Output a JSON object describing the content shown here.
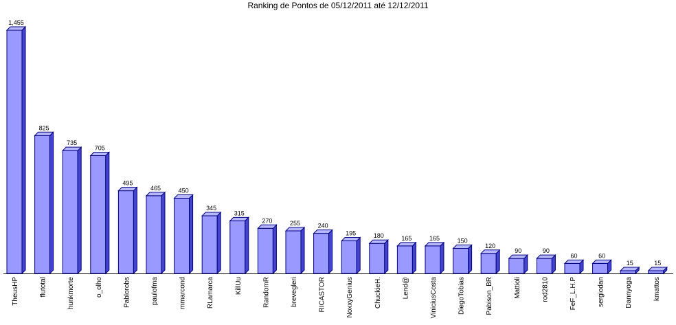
{
  "chart_data": {
    "type": "bar",
    "title": "Ranking de Pontos de 05/12/2011 até 12/12/2011",
    "xlabel": "",
    "ylabel": "",
    "categories": [
      "TheusHP",
      "flutotal",
      "hunkmorte",
      "o_olho",
      "Pablorobs",
      "paulofma",
      "mmarcond",
      "RLamarca",
      "KillUu",
      "RandomR",
      "brevegleri",
      "RICASTOR",
      "NoxxyGenius",
      "ChuckieH.",
      "Lend@",
      "ViniciusCosta",
      "DiegoTobias",
      "Pabison_BR",
      "Mattioli",
      "rod2810",
      "FeF_L.H.P",
      "sergiodan",
      "Dannyoga",
      "kmattos"
    ],
    "values": [
      1455,
      825,
      735,
      705,
      495,
      465,
      450,
      345,
      315,
      270,
      255,
      240,
      195,
      180,
      165,
      165,
      150,
      120,
      90,
      90,
      60,
      60,
      15,
      15
    ],
    "value_labels": [
      "1,455",
      "825",
      "735",
      "705",
      "495",
      "465",
      "450",
      "345",
      "315",
      "270",
      "255",
      "240",
      "195",
      "180",
      "165",
      "165",
      "150",
      "120",
      "90",
      "90",
      "60",
      "60",
      "15",
      "15"
    ],
    "ylim": [
      0,
      1455
    ],
    "grid": false,
    "legend": "none",
    "colors": {
      "bar_front": "#9999ff",
      "bar_side": "#4444cc",
      "bar_top": "#b8b8ff",
      "outline": "#000080",
      "axis": "#000000"
    }
  }
}
